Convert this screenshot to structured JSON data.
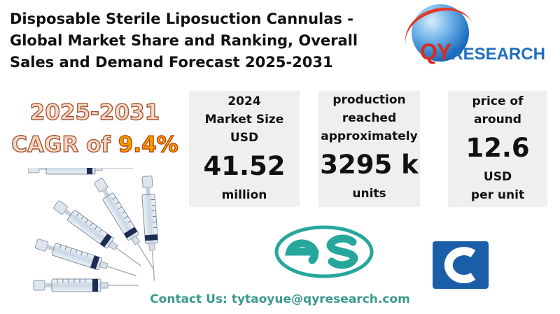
{
  "title_lines": [
    "Disposable Sterile Liposuction Cannulas -",
    "Global Market Share and Ranking, Overall",
    "Sales and Demand Forecast 2025-2031"
  ],
  "logo": {
    "prefix": "QY",
    "suffix": "RESEARCH"
  },
  "cagr": {
    "period": "2025-2031",
    "label": "CAGR of ",
    "value": "9.4%"
  },
  "market_card": {
    "year": "2024",
    "line2": "Market Size",
    "unit": "USD",
    "value": "41.52",
    "scale": "million"
  },
  "production_card": {
    "line1": "production",
    "line2": "reached",
    "line3": "approximately",
    "value": "3295 k",
    "unit": "units"
  },
  "price_card": {
    "line1": "price of",
    "line2": "around",
    "value": "12.6",
    "unit": "USD",
    "per": "per unit"
  },
  "contact": "Contact Us: tytaoyue@qyresearch.com",
  "colors": {
    "contact": "#3a9a8e",
    "es_logo": "#27a79c",
    "brand_blue": "#1e6fc0",
    "brand_red": "#d62d20"
  }
}
